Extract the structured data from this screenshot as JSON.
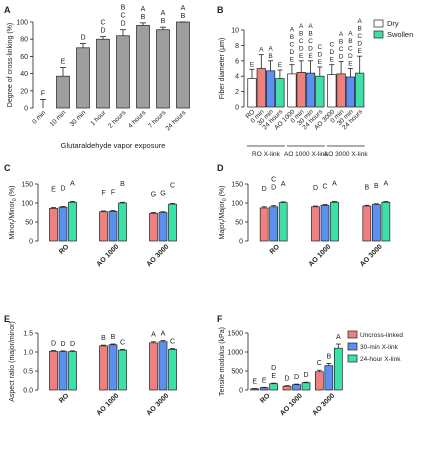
{
  "colors": {
    "ro": "#f08080",
    "min30": "#5b8ff0",
    "h24": "#3ee0a8",
    "gray": "#9e9e9e",
    "white": "#ffffff",
    "stroke": "#222222"
  },
  "chart_data": [
    {
      "panel": "A",
      "type": "bar",
      "ylabel": "Degree of cross-linking (%)",
      "xlabel": "Glutaraldehyde vapor exposure",
      "ylim": [
        0,
        100
      ],
      "yticks": [
        "0",
        "20",
        "40",
        "60",
        "80",
        "100"
      ],
      "categories": [
        "0 min",
        "10 min",
        "30 min",
        "1 hour",
        "2 hours",
        "4 hours",
        "7 hours",
        "24 hours"
      ],
      "values": [
        0,
        37,
        70,
        80,
        84,
        96,
        91,
        100
      ],
      "errors": [
        10,
        10,
        5,
        3,
        7,
        3,
        3,
        0
      ],
      "letters": [
        "F",
        "E",
        "D",
        "C D",
        "B C D",
        "A B",
        "A B",
        "A B"
      ]
    },
    {
      "panel": "B",
      "type": "bar",
      "ylabel": "Fiber diameter (μm)",
      "ylim": [
        0,
        10
      ],
      "yticks": [
        "0",
        "2",
        "4",
        "6",
        "8",
        "10"
      ],
      "legend": [
        "Dry",
        "Swollen"
      ],
      "groups": [
        "RO X-link",
        "AO 1000 X-link",
        "AO 3000 X-link"
      ],
      "categories": [
        "RO",
        "0 min",
        "30 min",
        "24 hours",
        "AO 1000",
        "0 min",
        "30 min",
        "24 hours",
        "AO 3000",
        "0 min",
        "30 min",
        "24 hours"
      ],
      "values": [
        3.7,
        5.0,
        4.7,
        3.7,
        4.3,
        4.5,
        4.4,
        4.0,
        4.2,
        4.3,
        3.9,
        4.4
      ],
      "errors": [
        1.2,
        1.8,
        1.3,
        1.1,
        1.2,
        1.5,
        1.6,
        1.2,
        1.3,
        1.6,
        1.1,
        2.2
      ],
      "kinds": [
        "white",
        "ro",
        "min30",
        "h24",
        "white",
        "ro",
        "min30",
        "h24",
        "white",
        "ro",
        "min30",
        "h24"
      ],
      "letters": [
        "E",
        "A",
        "A B",
        "E",
        "A B C D E",
        "A B C D E",
        "A B C D E",
        "C D E",
        "C D E",
        "A B C D",
        "A B C D E",
        "A B C D E"
      ]
    },
    {
      "panel": "C",
      "type": "bar",
      "ylabel": "Minor_f/Minor_0 (%)",
      "ylim": [
        0,
        150
      ],
      "yticks": [
        "0",
        "50",
        "100",
        "150"
      ],
      "categories": [
        "RO",
        "AO 1000",
        "AO 3000"
      ],
      "series": [
        {
          "name": "Uncross-linked",
          "values": [
            86,
            77,
            73
          ],
          "errors": [
            2,
            2,
            2
          ],
          "letters": [
            "E",
            "F",
            "G"
          ]
        },
        {
          "name": "30-min X-link",
          "values": [
            89,
            78,
            75
          ],
          "errors": [
            2,
            2,
            2
          ],
          "letters": [
            "D",
            "F",
            "G"
          ]
        },
        {
          "name": "24-hour X-link",
          "values": [
            102,
            100,
            97
          ],
          "errors": [
            2,
            2,
            2
          ],
          "letters": [
            "A",
            "B",
            "C"
          ]
        }
      ]
    },
    {
      "panel": "D",
      "type": "bar",
      "ylabel": "Major_f/Major_0 (%)",
      "ylim": [
        0,
        150
      ],
      "yticks": [
        "0",
        "50",
        "100",
        "150"
      ],
      "categories": [
        "RO",
        "AO 1000",
        "AO 3000"
      ],
      "series": [
        {
          "name": "Uncross-linked",
          "values": [
            87,
            90,
            92
          ],
          "errors": [
            3,
            2,
            2
          ],
          "letters": [
            "D",
            "D",
            "B"
          ]
        },
        {
          "name": "30-min X-link",
          "values": [
            90,
            94,
            96
          ],
          "errors": [
            3,
            2,
            2
          ],
          "letters": [
            "C D",
            "C",
            "B"
          ]
        },
        {
          "name": "24-hour X-link",
          "values": [
            101,
            102,
            102
          ],
          "errors": [
            2,
            2,
            2
          ],
          "letters": [
            "A",
            "A",
            "A"
          ]
        }
      ]
    },
    {
      "panel": "E",
      "type": "bar",
      "ylabel": "Aspect ratio (major/minor)",
      "ylim": [
        0.0,
        1.5
      ],
      "yticks": [
        "0.0",
        "0.5",
        "1.0",
        "1.5"
      ],
      "categories": [
        "RO",
        "AO 1000",
        "AO 3000"
      ],
      "series": [
        {
          "name": "Uncross-linked",
          "values": [
            1.02,
            1.16,
            1.24
          ],
          "errors": [
            0.02,
            0.02,
            0.03
          ],
          "letters": [
            "D",
            "B",
            "A"
          ]
        },
        {
          "name": "30-min X-link",
          "values": [
            1.01,
            1.19,
            1.27
          ],
          "errors": [
            0.02,
            0.02,
            0.03
          ],
          "letters": [
            "D",
            "B",
            "A"
          ]
        },
        {
          "name": "24-hour X-link",
          "values": [
            1.01,
            1.05,
            1.07
          ],
          "errors": [
            0.02,
            0.02,
            0.02
          ],
          "letters": [
            "D",
            "C",
            "C"
          ]
        }
      ]
    },
    {
      "panel": "F",
      "type": "bar",
      "ylabel": "Tensile modulus (kPa)",
      "ylim": [
        0,
        1500
      ],
      "yticks": [
        "0",
        "500",
        "1000",
        "1500"
      ],
      "categories": [
        "RO",
        "AO 1000",
        "AO 3000"
      ],
      "legend": [
        "Uncross-linked",
        "30-min X-link",
        "24-hour X-link"
      ],
      "series": [
        {
          "name": "Uncross-linked",
          "values": [
            30,
            100,
            480
          ],
          "errors": [
            10,
            15,
            40
          ],
          "letters": [
            "E",
            "D",
            "C"
          ]
        },
        {
          "name": "30-min X-link",
          "values": [
            60,
            140,
            640
          ],
          "errors": [
            10,
            15,
            60
          ],
          "letters": [
            "E",
            "D",
            "B"
          ]
        },
        {
          "name": "24-hour X-link",
          "values": [
            165,
            190,
            1100
          ],
          "errors": [
            15,
            15,
            110
          ],
          "letters": [
            "D E",
            "D",
            "A"
          ]
        }
      ]
    }
  ]
}
